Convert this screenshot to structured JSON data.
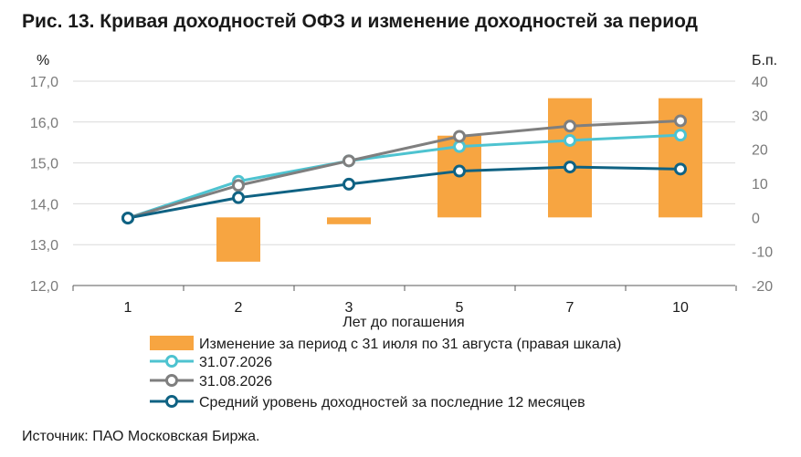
{
  "title": "Рис. 13. Кривая доходностей ОФЗ и изменение доходностей за период",
  "source": "Источник: ПАО Московская Биржа.",
  "chart_data": {
    "type": "bar+line",
    "xlabel": "Лет до погашения",
    "categories": [
      "1",
      "2",
      "3",
      "5",
      "7",
      "10"
    ],
    "y_left": {
      "unit": "%",
      "ticks": [
        "17,0",
        "16,0",
        "15,0",
        "14,0",
        "13,0",
        "12,0"
      ],
      "range": [
        12,
        17
      ]
    },
    "y_right": {
      "unit": "Б.п.",
      "ticks": [
        "40",
        "30",
        "20",
        "10",
        "0",
        "-10",
        "-20"
      ],
      "range": [
        -20,
        40
      ]
    },
    "bars": {
      "name": "Изменение за период с 31 июля по 31 августа (правая шкала)",
      "axis": "right",
      "color": "#f7a541",
      "values": [
        0,
        -13,
        -2,
        24,
        35,
        35
      ]
    },
    "series": [
      {
        "name": "31.07.2026",
        "color": "#4ec3d0",
        "values": [
          13.65,
          14.55,
          15.05,
          15.4,
          15.55,
          15.68
        ]
      },
      {
        "name": "31.08.2026",
        "color": "#7f7f7f",
        "values": [
          13.65,
          14.45,
          15.05,
          15.65,
          15.9,
          16.03
        ]
      },
      {
        "name": "Средний уровень доходностей за последние 12 месяцев",
        "color": "#0f6283",
        "values": [
          13.65,
          14.15,
          14.48,
          14.8,
          14.9,
          14.85
        ]
      }
    ],
    "grid": "horizontal"
  }
}
